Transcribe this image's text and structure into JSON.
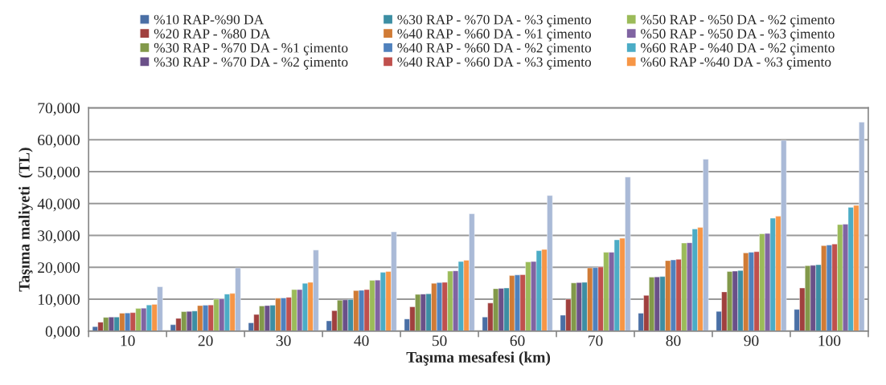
{
  "chart_data": {
    "type": "bar",
    "xlabel": "Taşıma mesafesi (km)",
    "ylabel": "Taşıma maliyeti  (TL)",
    "categories": [
      "10",
      "20",
      "30",
      "40",
      "50",
      "60",
      "70",
      "80",
      "90",
      "100"
    ],
    "series": [
      {
        "name": "%10 RAP-%90 DA",
        "color": "#4a6fa5",
        "values": [
          1400,
          2000,
          2600,
          3200,
          3800,
          4400,
          5000,
          5600,
          6200,
          6800
        ]
      },
      {
        "name": "%20 RAP - %80 DA",
        "color": "#a0403e",
        "values": [
          2800,
          4000,
          5200,
          6400,
          7600,
          8800,
          10000,
          11200,
          12300,
          13500
        ]
      },
      {
        "name": "%30 RAP - %70 DA - %1 çimento",
        "color": "#82994a",
        "values": [
          4300,
          6100,
          7900,
          9700,
          11500,
          13300,
          15100,
          16900,
          18700,
          20500
        ]
      },
      {
        "name": "%30 RAP - %70 DA - %2 çimento",
        "color": "#6a5088",
        "values": [
          4400,
          6200,
          8000,
          9800,
          11600,
          13400,
          15200,
          17000,
          18800,
          20600
        ]
      },
      {
        "name": "%30 RAP - %70 DA - %3 çimento",
        "color": "#3c8ea3",
        "values": [
          4400,
          6300,
          8100,
          9900,
          11700,
          13500,
          15300,
          17100,
          19000,
          20800
        ]
      },
      {
        "name": "%40 RAP - %60 DA - %1 çimento",
        "color": "#d07b36",
        "values": [
          5600,
          8000,
          10300,
          12700,
          15000,
          17400,
          19800,
          22100,
          24500,
          26800
        ]
      },
      {
        "name": "%40 RAP - %60 DA - %2 çimento",
        "color": "#4f81bd",
        "values": [
          5700,
          8100,
          10400,
          12800,
          15200,
          17600,
          19900,
          22300,
          24700,
          27000
        ]
      },
      {
        "name": "%40 RAP - %60 DA - %3 çimento",
        "color": "#c0504d",
        "values": [
          5800,
          8200,
          10600,
          13000,
          15300,
          17700,
          20100,
          22500,
          24900,
          27300
        ]
      },
      {
        "name": "%50 RAP - %50 DA - %2 çimento",
        "color": "#9bbb59",
        "values": [
          7100,
          10000,
          13000,
          15900,
          18800,
          21700,
          24700,
          27600,
          30500,
          33400
        ]
      },
      {
        "name": "%50 RAP - %50 DA - %3 çimento",
        "color": "#8064a2",
        "values": [
          7200,
          10100,
          13000,
          16000,
          18900,
          21800,
          24700,
          27700,
          30600,
          33500
        ]
      },
      {
        "name": "%60 RAP - %40 DA - %2 çimento",
        "color": "#4bacc6",
        "values": [
          8200,
          11600,
          15000,
          18400,
          21800,
          25200,
          28600,
          32000,
          35400,
          38800
        ]
      },
      {
        "name": "%60 RAP -%40 DA - %3 çimento",
        "color": "#f79646",
        "values": [
          8400,
          11800,
          15300,
          18700,
          22200,
          25600,
          29100,
          32500,
          36000,
          39400
        ]
      },
      {
        "color": "#aabad7",
        "values": [
          13900,
          19800,
          25400,
          31100,
          36800,
          42500,
          48300,
          53900,
          59800,
          65500
        ]
      }
    ],
    "ylim": [
      0,
      70000
    ],
    "yticks": [
      {
        "value": 0,
        "label": "0,000"
      },
      {
        "value": 10000,
        "label": "10,000"
      },
      {
        "value": 20000,
        "label": "20,000"
      },
      {
        "value": 30000,
        "label": "30,000"
      },
      {
        "value": 40000,
        "label": "40,000"
      },
      {
        "value": 50000,
        "label": "50,000"
      },
      {
        "value": 60000,
        "label": "60,000"
      },
      {
        "value": 70000,
        "label": "70,000"
      }
    ],
    "grid": "y",
    "legend": "top"
  }
}
